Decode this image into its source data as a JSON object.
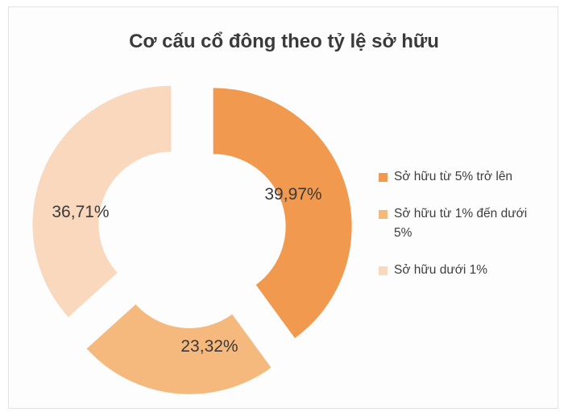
{
  "chart_data": {
    "type": "pie",
    "title": "Cơ cấu cổ đông theo tỷ lệ sở hữu",
    "categories": [
      "Sở hữu từ 5% trở lên",
      "Sở hữu từ 1% đến dưới 5%",
      "Sở hữu dưới 1%"
    ],
    "values": [
      39.97,
      23.32,
      36.71
    ],
    "data_labels": [
      "39,97%",
      "23,32%",
      "36,71%"
    ],
    "colors": [
      "#f0994f",
      "#f6b97d",
      "#f9d8bd"
    ],
    "legend_position": "right",
    "style": "exploded-donut"
  }
}
